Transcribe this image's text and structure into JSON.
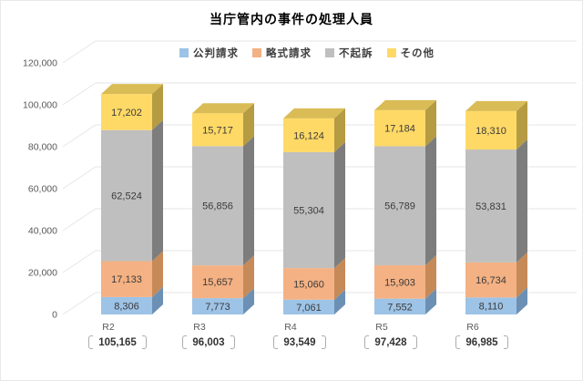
{
  "title": "当庁管内の事件の処理人員",
  "chart_data": {
    "type": "bar",
    "variant": "3d-stacked-column",
    "title": "当庁管内の事件の処理人員",
    "categories": [
      "R2",
      "R3",
      "R4",
      "R5",
      "R6"
    ],
    "series": [
      {
        "name": "公判請求",
        "color": "#9DC3E6",
        "side_color": "#6C90B4",
        "values": [
          8306,
          7773,
          7061,
          7552,
          8110
        ]
      },
      {
        "name": "略式請求",
        "color": "#F4B183",
        "side_color": "#C68A58",
        "values": [
          17133,
          15657,
          15060,
          15903,
          16734
        ]
      },
      {
        "name": "不起訴",
        "color": "#BFBFBF",
        "side_color": "#7D7D7D",
        "values": [
          62524,
          56856,
          55304,
          56789,
          53831
        ]
      },
      {
        "name": "その他",
        "color": "#FFD966",
        "side_color": "#B59B42",
        "top_color": "#D9BC55",
        "values": [
          17202,
          15717,
          16124,
          17184,
          18310
        ]
      }
    ],
    "category_totals": [
      "105,165",
      "96,003",
      "93,549",
      "97,428",
      "96,985"
    ],
    "y_axis": {
      "min": 0,
      "max": 120000,
      "step": 20000,
      "tick_labels": [
        "0",
        "20,000",
        "40,000",
        "60,000",
        "80,000",
        "100,000",
        "120,000"
      ]
    },
    "legend_position": "top",
    "gridlines": true,
    "data_labels": true
  },
  "colors": {
    "grid": "#E6E6E6",
    "tick_text": "#595959",
    "data_label_text": "#3B3B3B",
    "background": "#FFFFFF"
  }
}
